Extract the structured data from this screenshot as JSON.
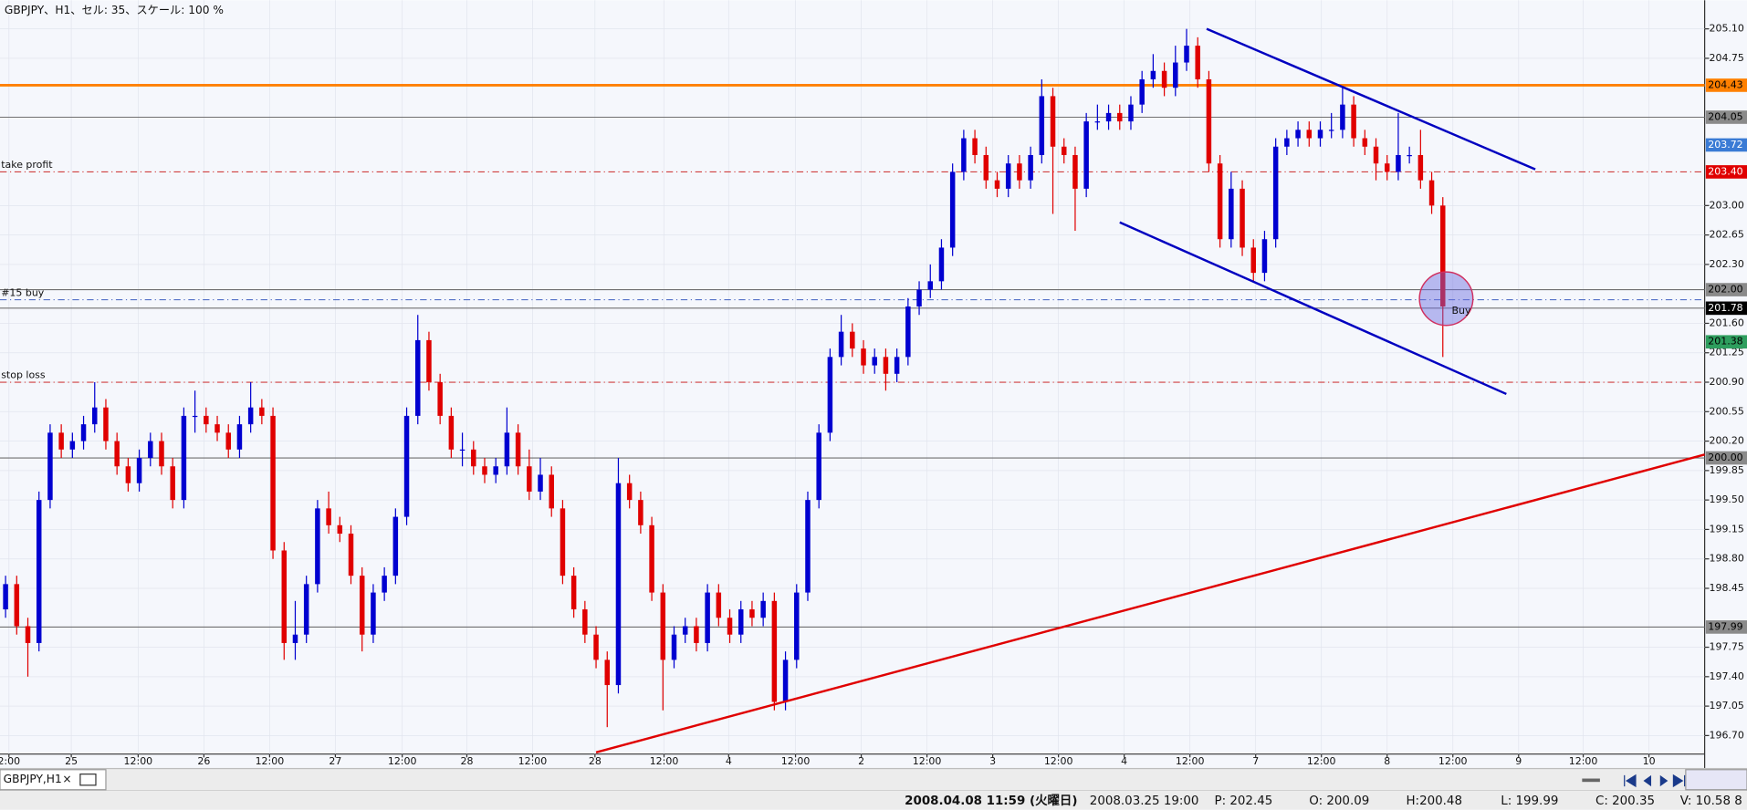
{
  "header": "GBPJPY、H1、セル: 35、スケール: 100 %",
  "tab": "GBPJPY,H1",
  "status": [
    "2008.04.08 11:59 (火曜日)",
    "2008.03.25 19:00",
    "P: 202.45",
    "O: 200.09",
    "H:200.48",
    "L: 199.99",
    "C: 200.35",
    "V: 10.58 8"
  ],
  "chart_data": {
    "type": "candlestick",
    "up_color": "#0000d0",
    "down_color": "#e00000",
    "open": [
      198.2,
      198.5,
      198.0,
      197.8,
      199.5,
      200.3,
      200.1,
      200.2,
      200.4,
      200.6,
      200.2,
      199.9,
      199.7,
      200.0,
      200.2,
      199.9,
      199.5,
      200.5,
      200.5,
      200.4,
      200.3,
      200.1,
      200.4,
      200.6,
      200.5,
      198.9,
      197.8,
      197.9,
      198.5,
      199.4,
      199.2,
      199.1,
      198.6,
      197.9,
      198.4,
      198.6,
      199.3,
      200.5,
      201.4,
      200.9,
      200.5,
      200.1,
      200.1,
      199.9,
      199.8,
      199.9,
      200.3,
      199.9,
      199.6,
      199.8,
      199.4,
      198.6,
      198.2,
      197.9,
      197.6,
      197.3,
      199.7,
      199.5,
      199.2,
      198.4,
      197.6,
      197.9,
      198.0,
      197.8,
      198.4,
      198.1,
      197.9,
      198.2,
      198.1,
      198.3,
      197.1,
      197.6,
      198.4,
      199.5,
      200.3,
      201.2,
      201.5,
      201.3,
      201.1,
      201.2,
      201.0,
      201.2,
      201.8,
      202.0,
      202.1,
      202.5,
      203.4,
      203.8,
      203.6,
      203.3,
      203.2,
      203.5,
      203.3,
      203.6,
      204.3,
      203.7,
      203.6,
      203.2,
      204.0,
      204.0,
      204.1,
      204.0,
      204.2,
      204.5,
      204.6,
      204.4,
      204.7,
      204.9,
      204.5,
      203.5,
      202.6,
      203.2,
      202.5,
      202.2,
      202.6,
      203.7,
      203.8,
      203.9,
      203.8,
      203.9,
      203.9,
      204.2,
      203.8,
      203.7,
      203.5,
      203.4,
      203.6,
      203.6,
      203.3,
      203.0
    ],
    "high": [
      198.6,
      198.6,
      198.1,
      199.6,
      200.4,
      200.4,
      200.3,
      200.5,
      200.9,
      200.7,
      200.3,
      200.0,
      200.1,
      200.3,
      200.3,
      200.0,
      200.6,
      200.8,
      200.6,
      200.5,
      200.4,
      200.5,
      200.9,
      200.7,
      200.6,
      199.0,
      198.3,
      198.6,
      199.5,
      199.6,
      199.3,
      199.2,
      198.7,
      198.5,
      198.7,
      199.4,
      200.6,
      201.7,
      201.5,
      201.0,
      200.6,
      200.3,
      200.2,
      200.0,
      200.0,
      200.6,
      200.4,
      200.1,
      200.0,
      199.9,
      199.5,
      198.7,
      198.3,
      198.0,
      197.7,
      200.0,
      199.8,
      199.6,
      199.3,
      198.5,
      198.0,
      198.1,
      198.1,
      198.5,
      198.5,
      198.2,
      198.3,
      198.3,
      198.4,
      198.4,
      197.7,
      198.5,
      199.6,
      200.4,
      201.3,
      201.7,
      201.6,
      201.4,
      201.3,
      201.3,
      201.3,
      201.9,
      202.1,
      202.3,
      202.6,
      203.5,
      203.9,
      203.9,
      203.7,
      203.4,
      203.6,
      203.6,
      203.7,
      204.5,
      204.4,
      203.8,
      203.7,
      204.1,
      204.2,
      204.2,
      204.2,
      204.3,
      204.6,
      204.8,
      204.7,
      204.9,
      205.1,
      205.0,
      204.6,
      203.6,
      203.4,
      203.3,
      202.6,
      202.7,
      203.8,
      203.9,
      204.0,
      204.0,
      204.0,
      204.1,
      204.4,
      204.3,
      203.9,
      203.8,
      203.6,
      204.1,
      203.7,
      203.9,
      203.4,
      203.1
    ],
    "low": [
      198.1,
      197.9,
      197.4,
      197.7,
      199.4,
      200.0,
      200.0,
      200.1,
      200.3,
      200.1,
      199.8,
      199.6,
      199.6,
      199.9,
      199.8,
      199.4,
      199.4,
      200.3,
      200.3,
      200.2,
      200.0,
      200.0,
      200.3,
      200.4,
      198.8,
      197.6,
      197.6,
      197.8,
      198.4,
      199.1,
      199.0,
      198.5,
      197.7,
      197.8,
      198.3,
      198.5,
      199.2,
      200.4,
      200.8,
      200.4,
      200.0,
      199.9,
      199.8,
      199.7,
      199.7,
      199.8,
      199.8,
      199.5,
      199.5,
      199.3,
      198.5,
      198.1,
      197.8,
      197.5,
      196.8,
      197.2,
      199.4,
      199.1,
      198.3,
      197.0,
      197.5,
      197.8,
      197.7,
      197.7,
      198.0,
      197.8,
      197.8,
      198.0,
      198.0,
      197.0,
      197.0,
      197.5,
      198.3,
      199.4,
      200.2,
      201.1,
      201.2,
      201.0,
      201.0,
      200.8,
      200.9,
      201.1,
      201.7,
      201.9,
      202.0,
      202.4,
      203.3,
      203.5,
      203.2,
      203.1,
      203.1,
      203.2,
      203.2,
      203.5,
      202.9,
      203.5,
      202.7,
      203.1,
      203.9,
      203.9,
      203.9,
      203.9,
      204.1,
      204.4,
      204.3,
      204.3,
      204.6,
      204.4,
      203.4,
      202.5,
      202.5,
      202.4,
      202.1,
      202.1,
      202.5,
      203.6,
      203.7,
      203.7,
      203.7,
      203.8,
      203.8,
      203.7,
      203.6,
      203.3,
      203.3,
      203.3,
      203.5,
      203.2,
      202.9,
      201.2
    ],
    "close": [
      198.5,
      198.0,
      197.8,
      199.5,
      200.3,
      200.1,
      200.2,
      200.4,
      200.6,
      200.2,
      199.9,
      199.7,
      200.0,
      200.2,
      199.9,
      199.5,
      200.5,
      200.5,
      200.4,
      200.3,
      200.1,
      200.4,
      200.6,
      200.5,
      198.9,
      197.8,
      197.9,
      198.5,
      199.4,
      199.2,
      199.1,
      198.6,
      197.9,
      198.4,
      198.6,
      199.3,
      200.5,
      201.4,
      200.9,
      200.5,
      200.1,
      200.1,
      199.9,
      199.8,
      199.9,
      200.3,
      199.9,
      199.6,
      199.8,
      199.4,
      198.6,
      198.2,
      197.9,
      197.6,
      197.3,
      199.7,
      199.5,
      199.2,
      198.4,
      197.6,
      197.9,
      198.0,
      197.8,
      198.4,
      198.1,
      197.9,
      198.2,
      198.1,
      198.3,
      197.1,
      197.6,
      198.4,
      199.5,
      200.3,
      201.2,
      201.5,
      201.3,
      201.1,
      201.2,
      201.0,
      201.2,
      201.8,
      202.0,
      202.1,
      202.5,
      203.4,
      203.8,
      203.6,
      203.3,
      203.2,
      203.5,
      203.3,
      203.6,
      204.3,
      203.7,
      203.6,
      203.2,
      204.0,
      204.0,
      204.1,
      204.0,
      204.2,
      204.5,
      204.6,
      204.4,
      204.7,
      204.9,
      204.5,
      203.5,
      202.6,
      203.2,
      202.5,
      202.2,
      202.6,
      203.7,
      203.8,
      203.9,
      203.8,
      203.9,
      203.9,
      204.2,
      203.8,
      203.7,
      203.5,
      203.4,
      203.6,
      203.6,
      203.3,
      203.0,
      201.8
    ],
    "xlim": [
      -0.5,
      152.5
    ],
    "xticks": [
      {
        "value": 0.3,
        "label": "2:00"
      },
      {
        "value": 5.9,
        "label": "25"
      },
      {
        "value": 11.9,
        "label": "12:00"
      },
      {
        "value": 17.8,
        "label": "26"
      },
      {
        "value": 23.7,
        "label": "12:00"
      },
      {
        "value": 29.6,
        "label": "27"
      },
      {
        "value": 35.6,
        "label": "12:00"
      },
      {
        "value": 41.4,
        "label": "28"
      },
      {
        "value": 47.3,
        "label": "12:00"
      },
      {
        "value": 52.9,
        "label": "28"
      },
      {
        "value": 59.1,
        "label": "12:00"
      },
      {
        "value": 64.9,
        "label": "4"
      },
      {
        "value": 70.9,
        "label": "12:00"
      },
      {
        "value": 76.8,
        "label": "2"
      },
      {
        "value": 82.7,
        "label": "12:00"
      },
      {
        "value": 88.6,
        "label": "3"
      },
      {
        "value": 94.5,
        "label": "12:00"
      },
      {
        "value": 100.4,
        "label": "4"
      },
      {
        "value": 106.3,
        "label": "12:00"
      },
      {
        "value": 112.2,
        "label": "7"
      },
      {
        "value": 118.1,
        "label": "12:00"
      },
      {
        "value": 124,
        "label": "8"
      },
      {
        "value": 129.9,
        "label": "12:00"
      },
      {
        "value": 135.8,
        "label": "9"
      },
      {
        "value": 141.6,
        "label": "12:00"
      },
      {
        "value": 147.5,
        "label": "10"
      }
    ],
    "ylim": [
      196.48,
      205.44
    ],
    "yticks": [
      {
        "value": 205.1,
        "label": "205.10"
      },
      204.75,
      {
        "value": 203,
        "label": "203.00"
      },
      202.65,
      {
        "value": 202.3,
        "label": "202.30"
      },
      {
        "value": 201.6,
        "label": "201.60"
      },
      201.25,
      {
        "value": 200.9,
        "label": "200.90"
      },
      200.55,
      {
        "value": 200.2,
        "label": "200.20"
      },
      199.85,
      {
        "value": 199.5,
        "label": "199.50"
      },
      199.15,
      {
        "value": 198.8,
        "label": "198.80"
      },
      198.45,
      197.75,
      {
        "value": 197.4,
        "label": "197.40"
      },
      197.05,
      {
        "value": 196.7,
        "label": "196.70"
      }
    ],
    "grid": true,
    "levels": [
      {
        "value": 204.43,
        "line": "solid",
        "color": "#ff8000",
        "marker_color": "#ff8000",
        "marker_text": "#000000"
      },
      {
        "value": 204.05,
        "line": "solid",
        "color": "#707070",
        "marker_color": "#8a8a8a",
        "marker_text": "#000000"
      },
      {
        "value": 203.72,
        "line": "none",
        "color": "#3a7bd5",
        "marker_color": "#3a7bd5",
        "marker_text": "#ffffff"
      },
      {
        "value": 203.4,
        "label": "203.40",
        "line": "dashed",
        "color": "#d04040",
        "marker_color": "#e00000",
        "marker_text": "#ffffff",
        "text": "take profit"
      },
      {
        "value": 202,
        "label": "202.00",
        "line": "solid",
        "color": "#707070",
        "marker_color": "#8a8a8a",
        "marker_text": "#000000"
      },
      {
        "value": 201.88,
        "line": "dashed",
        "color": "#4060c0",
        "text": "#15 buy"
      },
      {
        "value": 201.78,
        "line": "solid",
        "color": "#707070",
        "marker_color": "#000000",
        "marker_text": "#ffffff"
      },
      {
        "value": 201.38,
        "line": "none",
        "color": "#2e9e5e",
        "marker_color": "#2e9e5e",
        "marker_text": "#000000"
      },
      {
        "value": 200.9,
        "line": "dashed",
        "color": "#d04040",
        "text": "stop loss"
      },
      {
        "value": 200,
        "label": "200.00",
        "line": "solid",
        "color": "#707070",
        "marker_color": "#8a8a8a",
        "marker_text": "#000000"
      },
      {
        "value": 197.99,
        "line": "solid",
        "color": "#707070",
        "marker_color": "#8a8a8a",
        "marker_text": "#000000"
      }
    ],
    "trendlines": [
      {
        "x": [
          107.8,
          137.3
        ],
        "y": [
          205.1,
          203.43
        ],
        "color": "#0000c0"
      },
      {
        "x": [
          100,
          134.7
        ],
        "y": [
          202.8,
          200.76
        ],
        "color": "#0000c0"
      },
      {
        "x": [
          53,
          152.5
        ],
        "y": [
          196.5,
          200.04
        ],
        "color": "#e00000"
      }
    ],
    "annotation": "Buy"
  }
}
